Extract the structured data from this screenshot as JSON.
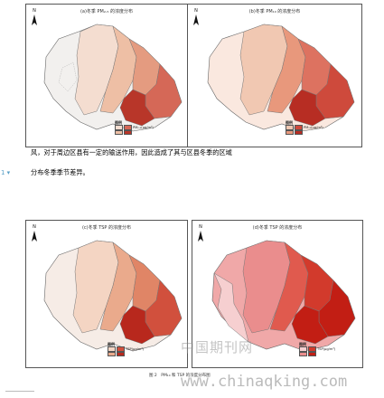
{
  "panels": [
    {
      "title": "(a)冬季 PM₂.₅ 的浓度分布",
      "north": "N",
      "legend_title": "图例",
      "colors": [
        "#f4ddd0",
        "#eebfa5",
        "#e49b80",
        "#d56857",
        "#b83629",
        "#f2f0ee"
      ],
      "legend_items": [
        "PM₂.₅(μg/m³)",
        "",
        "",
        "",
        "",
        ""
      ]
    },
    {
      "title": "(b)冬季 PM₁₀ 的浓度分布",
      "north": "N",
      "legend_title": "图例",
      "colors": [
        "#f1c8b2",
        "#e8987c",
        "#dd7260",
        "#ce4a3c",
        "#b72d23",
        "#fae8df"
      ],
      "legend_items": [
        "PM₁₀(μg/m³)",
        "",
        "",
        "",
        "",
        ""
      ]
    },
    {
      "title": "(c)冬季 TSP 的浓度分布",
      "north": "N",
      "legend_title": "图例",
      "colors": [
        "#f4d5c3",
        "#eaaa8c",
        "#e08566",
        "#d1503d",
        "#b8281d",
        "#f6ece6"
      ],
      "legend_items": [
        "TSP(μg/m³)",
        "",
        "",
        "",
        "",
        ""
      ]
    },
    {
      "title": "(d)冬季 TSP 的浓度分布",
      "north": "N",
      "legend_title": "图例",
      "colors": [
        "#f6cfd0",
        "#ea8d8d",
        "#e05a4e",
        "#d23a2c",
        "#c21e14",
        "#f0a8a8"
      ],
      "legend_items": [
        "TSP(μg/m³)",
        "",
        "",
        "",
        "",
        ""
      ]
    }
  ],
  "text_line_1": "风，对于周边区县有一定的输送作用，因此造成了其与区县冬季的区域",
  "text_line_2": "分布冬季季节差异。",
  "marker": "1 ▾",
  "watermark_cn": "中国期刊网",
  "watermark_url": "www.chinaqking.com",
  "caption": "图 2　PM₁₀ 和 TSP 的浓度分布图"
}
